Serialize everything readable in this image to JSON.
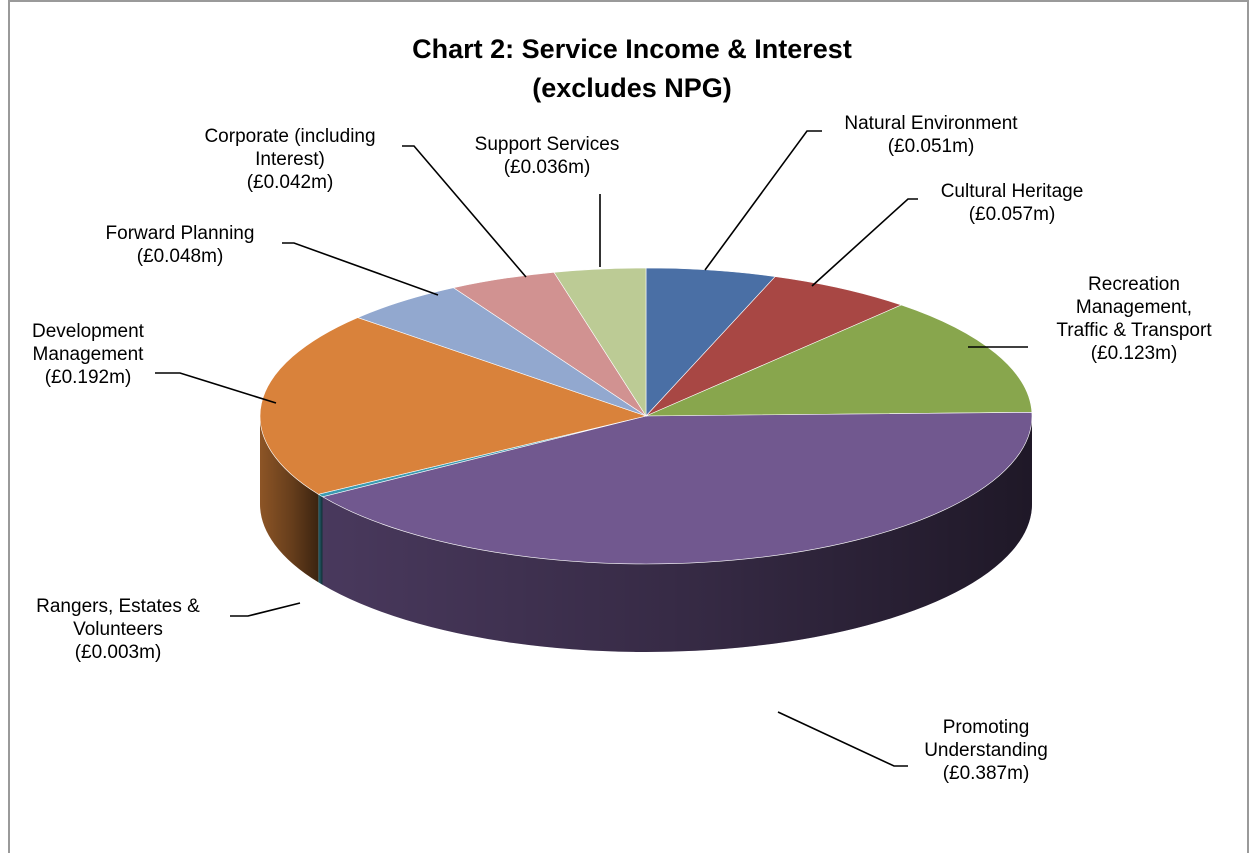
{
  "chart_data": {
    "type": "pie",
    "title": [
      "Chart 2: Service Income & Interest",
      "(excludes NPG)"
    ],
    "unit": "£m",
    "slices": [
      {
        "name": "Natural Environment",
        "value": 0.051,
        "value_label": "(£0.051m)",
        "label_lines": [
          "Natural Environment"
        ],
        "color": "#4a6fa5"
      },
      {
        "name": "Cultural Heritage",
        "value": 0.057,
        "value_label": "(£0.057m)",
        "label_lines": [
          "Cultural Heritage"
        ],
        "color": "#a84744"
      },
      {
        "name": "Recreation Management, Traffic & Transport",
        "value": 0.123,
        "value_label": "(£0.123m)",
        "label_lines": [
          "Recreation",
          "Management,",
          "Traffic & Transport"
        ],
        "color": "#88a64d"
      },
      {
        "name": "Promoting Understanding",
        "value": 0.387,
        "value_label": "(£0.387m)",
        "label_lines": [
          "Promoting",
          "Understanding"
        ],
        "color": "#71588f"
      },
      {
        "name": "Rangers, Estates & Volunteers",
        "value": 0.003,
        "value_label": "(£0.003m)",
        "label_lines": [
          "Rangers, Estates &",
          "Volunteers"
        ],
        "color": "#3b9bb1"
      },
      {
        "name": "Development Management",
        "value": 0.192,
        "value_label": "(£0.192m)",
        "label_lines": [
          "Development",
          "Management"
        ],
        "color": "#d9823b"
      },
      {
        "name": "Forward Planning",
        "value": 0.048,
        "value_label": "(£0.048m)",
        "label_lines": [
          "Forward Planning"
        ],
        "color": "#92a8cf"
      },
      {
        "name": "Corporate (including Interest)",
        "value": 0.042,
        "value_label": "(£0.042m)",
        "label_lines": [
          "Corporate (including",
          "Interest)"
        ],
        "color": "#d19291"
      },
      {
        "name": "Support Services",
        "value": 0.036,
        "value_label": "(£0.036m)",
        "label_lines": [
          "Support Services"
        ],
        "color": "#bccb95"
      }
    ],
    "start_angle": "12 o'clock",
    "direction": "clockwise",
    "style": "3d-tilted",
    "legend": "none (data labels with leader lines)"
  }
}
